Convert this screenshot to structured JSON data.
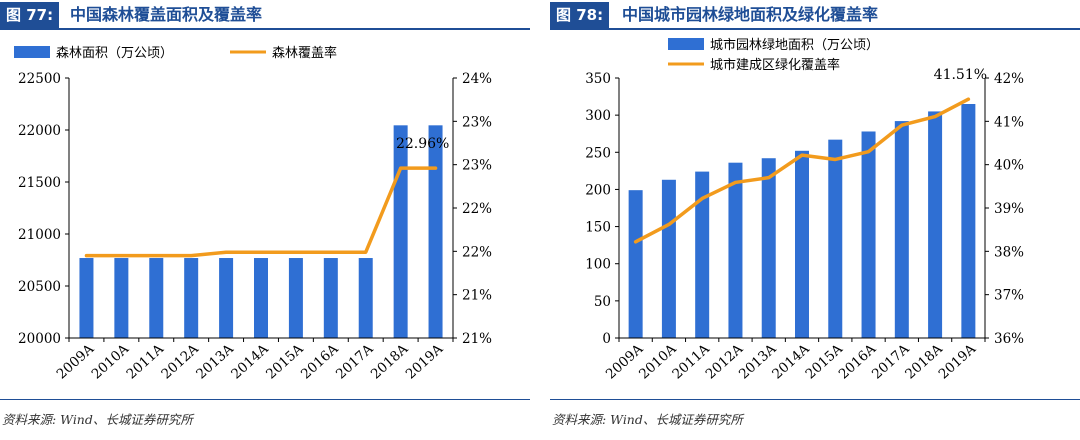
{
  "figures": [
    {
      "tag": "图 77:",
      "title": "中国森林覆盖面积及覆盖率",
      "source": "资料来源: Wind、长城证券研究所"
    },
    {
      "tag": "图 78:",
      "title": "中国城市园林绿地面积及绿化覆盖率",
      "source": "资料来源: Wind、长城证券研究所"
    }
  ],
  "chart_data": [
    {
      "type": "bar+line",
      "categories": [
        "2009A",
        "2010A",
        "2011A",
        "2012A",
        "2013A",
        "2014A",
        "2015A",
        "2016A",
        "2017A",
        "2018A",
        "2019A"
      ],
      "series": [
        {
          "name": "森林面积（万公顷）",
          "type": "bar",
          "axis": "left",
          "color": "#2f6fd3",
          "values": [
            20769,
            20769,
            20769,
            20769,
            20769,
            20769,
            20769,
            20769,
            20769,
            22045,
            22045
          ]
        },
        {
          "name": "森林覆盖率",
          "type": "line",
          "axis": "right",
          "color": "#f29b1d",
          "values": [
            21.95,
            21.95,
            21.95,
            21.95,
            21.99,
            21.99,
            21.99,
            21.99,
            21.99,
            22.96,
            22.96
          ]
        }
      ],
      "annotations": [
        {
          "series": 1,
          "index": 9,
          "text": "22.96%"
        }
      ],
      "y_left": {
        "lim": [
          20000,
          22500
        ],
        "ticks": [
          "20000",
          "20500",
          "21000",
          "21500",
          "22000",
          "22500"
        ]
      },
      "y_right": {
        "lim": [
          21,
          24
        ],
        "ticks": [
          "21%",
          "21%",
          "22%",
          "22%",
          "23%",
          "23%",
          "24%"
        ]
      },
      "legend": "top",
      "grid": false
    },
    {
      "type": "bar+line",
      "categories": [
        "2009A",
        "2010A",
        "2011A",
        "2012A",
        "2013A",
        "2014A",
        "2015A",
        "2016A",
        "2017A",
        "2018A",
        "2019A"
      ],
      "series": [
        {
          "name": "城市园林绿地面积（万公顷）",
          "type": "bar",
          "axis": "left",
          "color": "#2f6fd3",
          "values": [
            199,
            213,
            224,
            236,
            242,
            252,
            267,
            278,
            292,
            305,
            315
          ]
        },
        {
          "name": "城市建成区绿化覆盖率",
          "type": "line",
          "axis": "right",
          "color": "#f29b1d",
          "values": [
            38.22,
            38.62,
            39.22,
            39.59,
            39.7,
            40.22,
            40.12,
            40.3,
            40.91,
            41.11,
            41.51
          ]
        }
      ],
      "annotations": [
        {
          "series": 1,
          "index": 10,
          "text": "41.51%"
        }
      ],
      "y_left": {
        "lim": [
          0,
          350
        ],
        "ticks": [
          "0",
          "50",
          "100",
          "150",
          "200",
          "250",
          "300",
          "350"
        ]
      },
      "y_right": {
        "lim": [
          36,
          42
        ],
        "ticks": [
          "36%",
          "37%",
          "38%",
          "39%",
          "40%",
          "41%",
          "42%"
        ]
      },
      "legend": "top",
      "grid": false
    }
  ]
}
